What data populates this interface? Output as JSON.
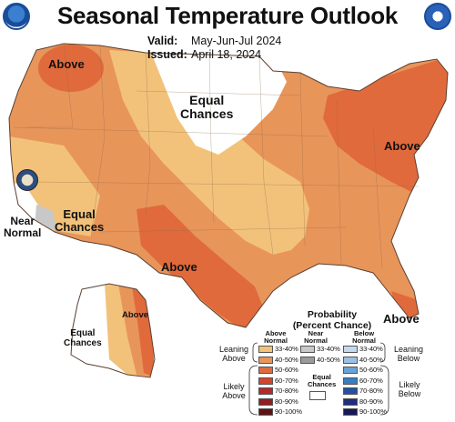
{
  "title": "Seasonal Temperature Outlook",
  "valid_label": "Valid:",
  "valid_value": "May-Jun-Jul 2024",
  "issued_label": "Issued:",
  "issued_value": "April 18, 2024",
  "map_labels": {
    "above_nw": "Above",
    "equal_chances_north": "Equal\nChances",
    "above_northeast": "Above",
    "near_normal": "Near\nNormal",
    "equal_chances_west": "Equal\nChances",
    "above_southwest": "Above",
    "above_florida": "Above",
    "above_alaska": "Above",
    "equal_chances_alaska": "Equal\nChances"
  },
  "legend": {
    "title": "Probability\n(Percent Chance)",
    "above_header": "Above\nNormal",
    "near_header": "Near\nNormal",
    "below_header": "Below\nNormal",
    "leaning_above": "Leaning\nAbove",
    "likely_above": "Likely\nAbove",
    "leaning_below": "Leaning\nBelow",
    "likely_below": "Likely\nBelow",
    "equal_chances": "Equal\nChances",
    "above_bins": [
      {
        "label": "33-40%",
        "color": "#f2c27b"
      },
      {
        "label": "40-50%",
        "color": "#e8955a"
      },
      {
        "label": "50-60%",
        "color": "#e06a3c"
      },
      {
        "label": "60-70%",
        "color": "#d6432b"
      },
      {
        "label": "70-80%",
        "color": "#b52a2a"
      },
      {
        "label": "80-90%",
        "color": "#8f1f22"
      },
      {
        "label": "90-100%",
        "color": "#5e1416"
      }
    ],
    "near_bins": [
      {
        "label": "33-40%",
        "color": "#c8c8c8"
      },
      {
        "label": "40-50%",
        "color": "#9a9a9a"
      }
    ],
    "below_bins": [
      {
        "label": "33-40%",
        "color": "#c5d8ee"
      },
      {
        "label": "40-50%",
        "color": "#9cbfe3"
      },
      {
        "label": "50-60%",
        "color": "#6aa3d6"
      },
      {
        "label": "60-70%",
        "color": "#3a7dc2"
      },
      {
        "label": "70-80%",
        "color": "#2550a3"
      },
      {
        "label": "80-90%",
        "color": "#1f2f7d"
      },
      {
        "label": "90-100%",
        "color": "#17195a"
      }
    ]
  },
  "colors": {
    "above_33_40": "#f2c27b",
    "above_40_50": "#e8955a",
    "above_50_60": "#e06a3c",
    "near_33_40": "#c8c8c8",
    "equal_chances": "#ffffff",
    "boundary": "#7a5a3a"
  },
  "icons": [
    "noaa-logo",
    "nws-logo",
    "commerce-seal"
  ]
}
